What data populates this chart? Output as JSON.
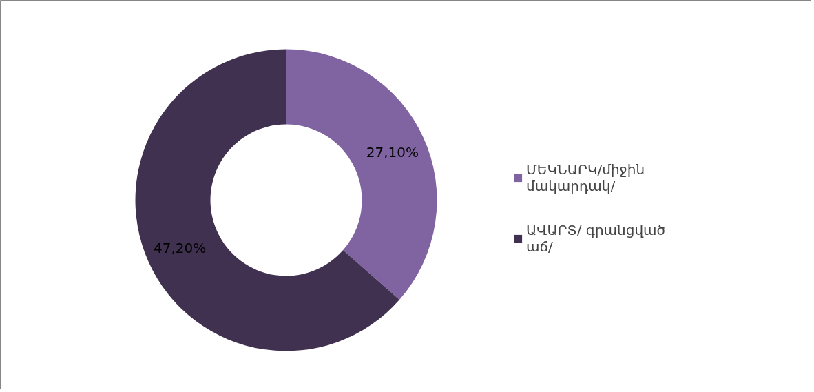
{
  "chart_data": {
    "type": "donut",
    "categories": [
      "ՄԵԿՆԱՐԿ/միջին մակարդակ/",
      "ԱՎԱՐՏ/ գրանցված աճ/"
    ],
    "values": [
      27.1,
      47.2
    ],
    "value_labels": [
      "27,10%",
      "47,20%"
    ],
    "colors": [
      "#8064a2",
      "#403151"
    ],
    "legend": "right"
  }
}
